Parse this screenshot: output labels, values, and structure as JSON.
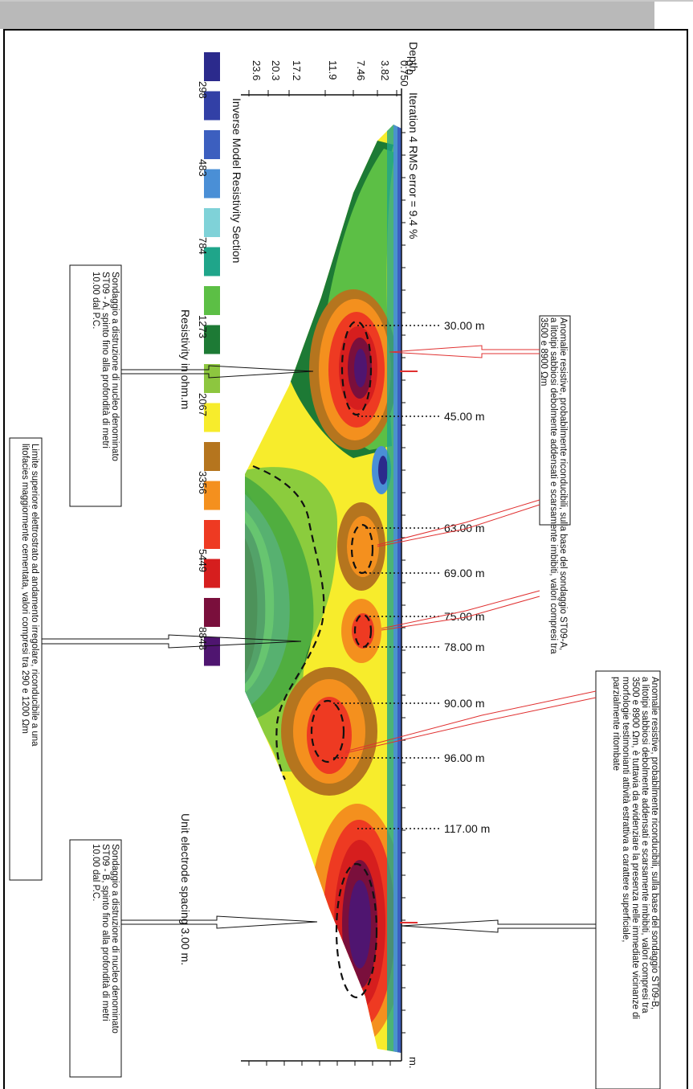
{
  "chart_data": {
    "type": "heatmap",
    "title": "Iteration 4 RMS error = 9.4 %",
    "subtitle": "Inverse Model Resistivity Section",
    "ylabel": "Depth",
    "depth_ticks": [
      "0.0",
      "0.750",
      "3.82",
      "7.46",
      "11.9",
      "17.2",
      "20.3",
      "23.6"
    ],
    "legend_title": "Resistivity in ohm.m",
    "legend_values": [
      "298",
      "483",
      "784",
      "1273",
      "2067",
      "3356",
      "5449",
      "8848"
    ],
    "legend_colors": [
      "#2b2a8c",
      "#3240a6",
      "#3c5fbf",
      "#4a8fd6",
      "#7fd2d8",
      "#1fa58a",
      "#5cbf45",
      "#1d7a35",
      "#8dc63f",
      "#f7ec2c",
      "#b5751e",
      "#f4901e",
      "#ee3a22",
      "#d61e1e",
      "#7a0f3c",
      "#4f1570"
    ],
    "xlabel": "Unit electrode spacing 3.00 m.",
    "x_unit": "m.",
    "markers": [
      "30.00 m",
      "45.00 m",
      "63.00 m",
      "69.00 m",
      "75.00 m",
      "78.00 m",
      "90.00 m",
      "96.00 m",
      "117.00 m"
    ]
  },
  "annotations": {
    "a1": [
      "Anomalie resistive, probabilmente riconducibili, sulla base del sondaggio ST09-A,",
      "a litotipi sabbiosi debolmente addensati e scarsamente imbibiti, valori compresi tra",
      "3500 e 8900 Ωm"
    ],
    "a2": [
      "Anomalie resistive, probabilmente riconducibili, sulla base del sondaggio ST09-B,",
      "a litotipi sabbiosi debolmente addensati e scarsamente imbibiti, valori compresi tra",
      "3500 e 8900 Ωm, è tuttavia da evidenziare la presenza nelle immediate vicinanze di",
      "morfologie testimonianti attività estrattiva a carattere superficiale,",
      "parzialmente ritombate"
    ],
    "s1": [
      "Sondaggio a distruzione di nucleo denominato",
      "ST09 - A, spinto fino alla profondità di metri",
      "10.00 dal P.C."
    ],
    "s2": [
      "Sondaggio a distruzione di nucleo denominato",
      "ST09 - B, spinto fino alla profondità di metri",
      "10.00 dal P.C."
    ],
    "lim": [
      "Limite superiore elettrostrato ad andamento irregolare, riconducibile a una",
      "litofacies maggiormente cementata, valori compresi tra 290 e 1200 Ωm"
    ]
  }
}
